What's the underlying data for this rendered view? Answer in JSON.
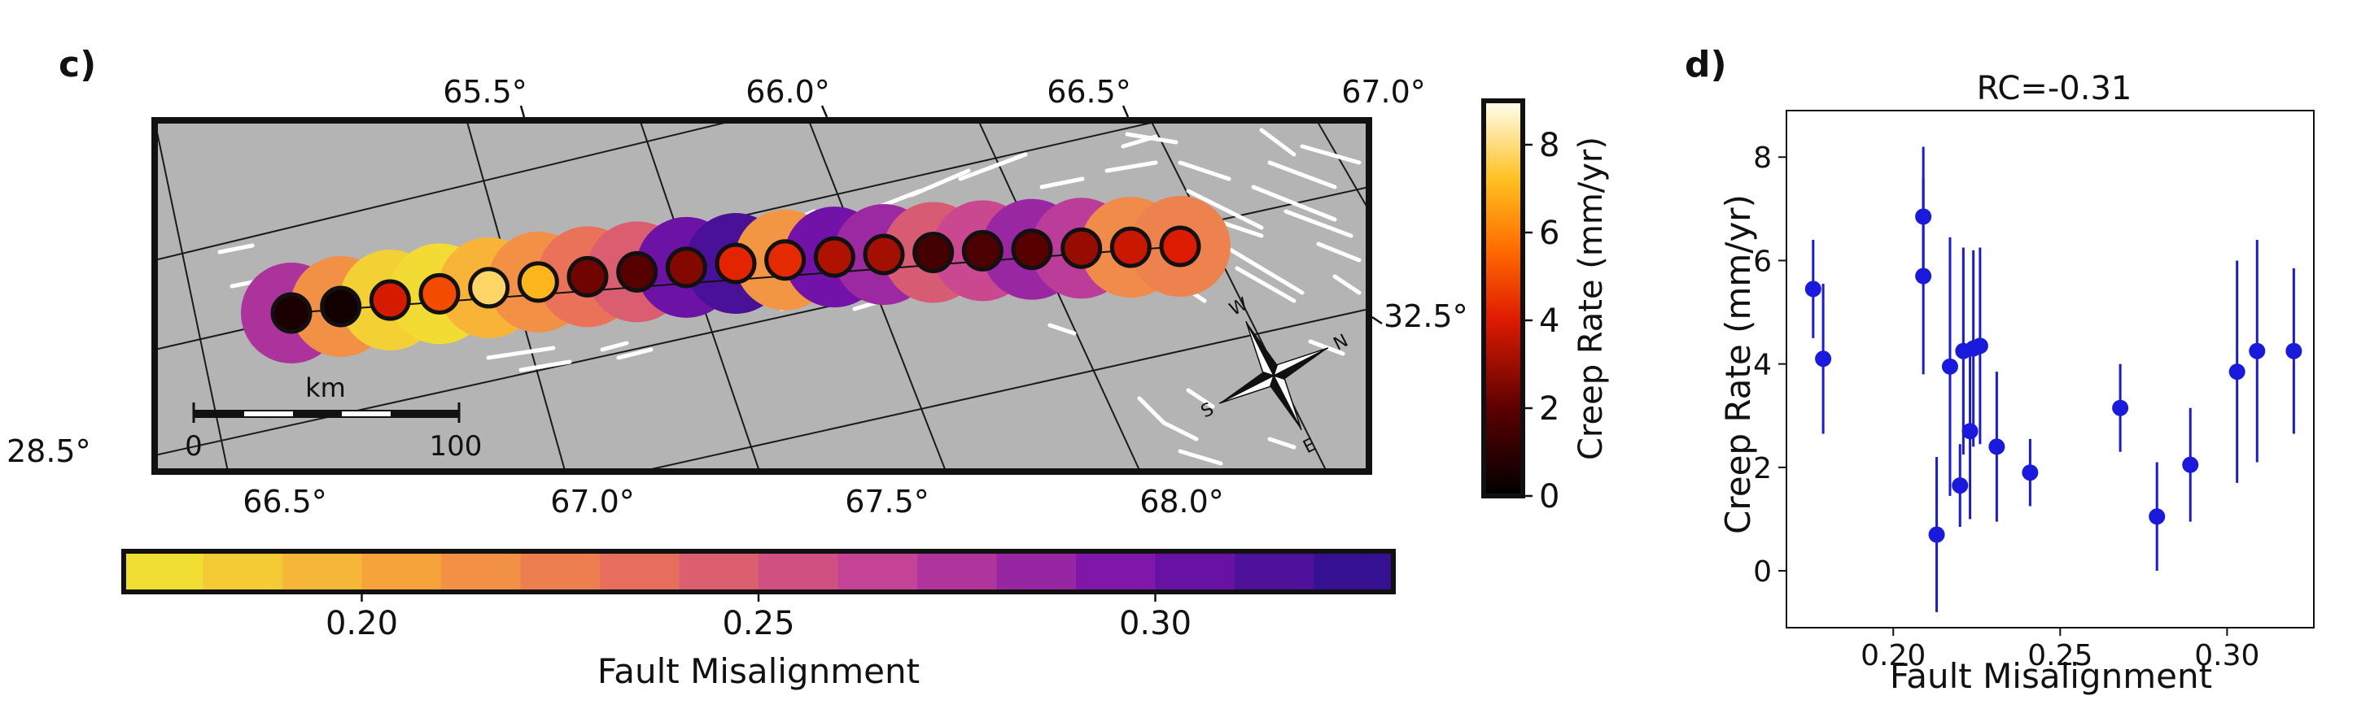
{
  "panels": {
    "c_label": "c)",
    "d_label": "d)"
  },
  "map": {
    "top_lon_ticks": [
      "65.5°",
      "66.0°",
      "66.5°",
      "67.0°"
    ],
    "bottom_lon_ticks": [
      "66.5°",
      "67.0°",
      "67.5°",
      "68.0°"
    ],
    "right_lat_tick": "32.5°",
    "left_lat_tick": "28.5°",
    "scale_bar": {
      "unit": "km",
      "start": "0",
      "end": "100"
    },
    "compass": [
      "W",
      "N",
      "S",
      "E"
    ],
    "background_color": "#b4b4b4",
    "creep_points": [
      {
        "misalignment": 0.276,
        "creep": 0.6
      },
      {
        "misalignment": 0.215,
        "creep": 0.4
      },
      {
        "misalignment": 0.182,
        "creep": 3.9
      },
      {
        "misalignment": 0.176,
        "creep": 5.0
      },
      {
        "misalignment": 0.196,
        "creep": 7.8
      },
      {
        "misalignment": 0.215,
        "creep": 7.0
      },
      {
        "misalignment": 0.232,
        "creep": 2.3
      },
      {
        "misalignment": 0.246,
        "creep": 1.9
      },
      {
        "misalignment": 0.303,
        "creep": 2.6
      },
      {
        "misalignment": 0.317,
        "creep": 4.2
      },
      {
        "misalignment": 0.212,
        "creep": 4.3
      },
      {
        "misalignment": 0.3,
        "creep": 3.3
      },
      {
        "misalignment": 0.283,
        "creep": 3.1
      },
      {
        "misalignment": 0.248,
        "creep": 1.5
      },
      {
        "misalignment": 0.262,
        "creep": 1.7
      },
      {
        "misalignment": 0.284,
        "creep": 1.9
      },
      {
        "misalignment": 0.27,
        "creep": 2.9
      },
      {
        "misalignment": 0.218,
        "creep": 3.7
      },
      {
        "misalignment": 0.223,
        "creep": 4.0
      }
    ]
  },
  "colorbars": {
    "creep": {
      "label": "Creep Rate (mm/yr)",
      "ticks": [
        "0",
        "2",
        "4",
        "6",
        "8"
      ],
      "range": [
        0,
        9
      ],
      "colormap": "afmhot"
    },
    "misalignment": {
      "label": "Fault Misalignment",
      "ticks": [
        "0.20",
        "0.25",
        "0.30"
      ],
      "range": [
        0.17,
        0.33
      ],
      "colormap": "plasma_r",
      "bins": 16
    }
  },
  "chart_data": {
    "type": "scatter",
    "title": "RC=-0.31",
    "xlabel": "Fault Misalignment",
    "ylabel": "Creep Rate (mm/yr)",
    "xlim": [
      0.168,
      0.326
    ],
    "ylim": [
      -1.1,
      8.9
    ],
    "xticks": [
      "0.20",
      "0.25",
      "0.30"
    ],
    "yticks": [
      "0",
      "2",
      "4",
      "6",
      "8"
    ],
    "grid": false,
    "color": "#1a1adc",
    "points": [
      {
        "x": 0.176,
        "y": 5.45,
        "err": 0.95
      },
      {
        "x": 0.179,
        "y": 4.1,
        "err": 1.45
      },
      {
        "x": 0.209,
        "y": 6.85,
        "err": 1.35
      },
      {
        "x": 0.209,
        "y": 5.7,
        "err": 1.9
      },
      {
        "x": 0.213,
        "y": 0.7,
        "err": 1.5
      },
      {
        "x": 0.217,
        "y": 3.95,
        "err": 2.5
      },
      {
        "x": 0.22,
        "y": 1.65,
        "err": 0.8
      },
      {
        "x": 0.221,
        "y": 4.25,
        "err": 2.0
      },
      {
        "x": 0.223,
        "y": 2.7,
        "err": 1.7
      },
      {
        "x": 0.224,
        "y": 4.3,
        "err": 1.9
      },
      {
        "x": 0.226,
        "y": 4.35,
        "err": 1.9
      },
      {
        "x": 0.231,
        "y": 2.4,
        "err": 1.45
      },
      {
        "x": 0.241,
        "y": 1.9,
        "err": 0.65
      },
      {
        "x": 0.268,
        "y": 3.15,
        "err": 0.85
      },
      {
        "x": 0.279,
        "y": 1.05,
        "err": 1.05
      },
      {
        "x": 0.289,
        "y": 2.05,
        "err": 1.1
      },
      {
        "x": 0.303,
        "y": 3.85,
        "err": 2.15
      },
      {
        "x": 0.309,
        "y": 4.25,
        "err": 2.15
      },
      {
        "x": 0.32,
        "y": 4.25,
        "err": 1.6
      }
    ]
  }
}
